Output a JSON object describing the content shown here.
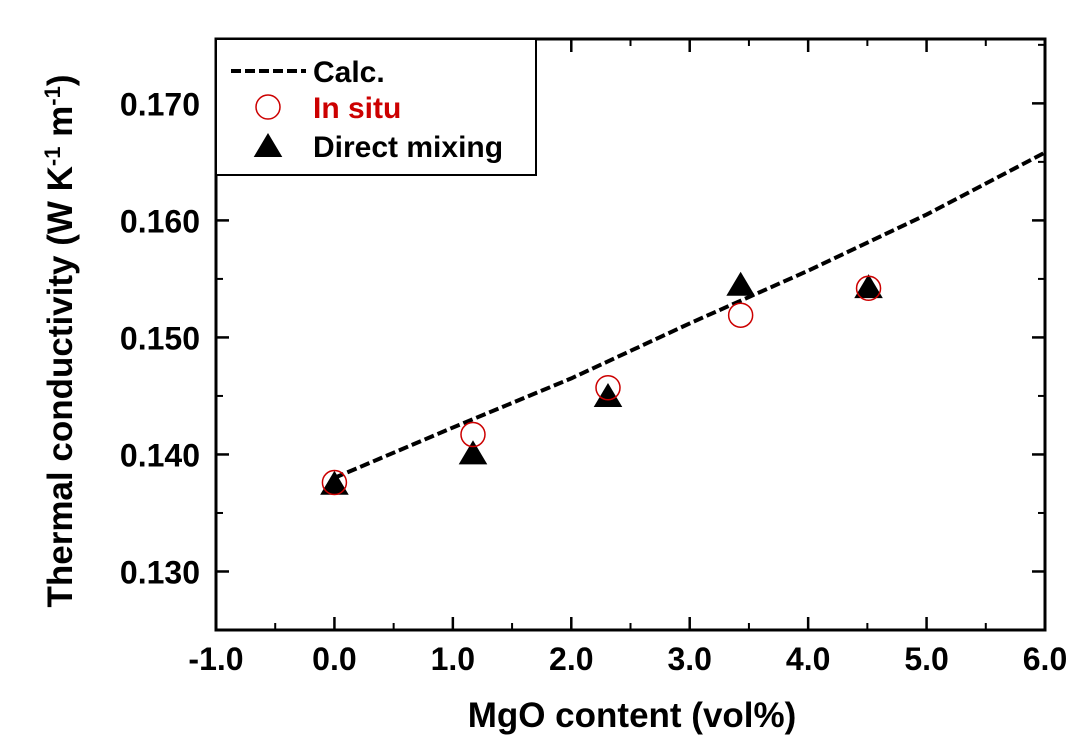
{
  "chart_data": {
    "type": "scatter",
    "xlabel": "MgO content (vol%)",
    "ylabel": "Thermal conductivity (W K",
    "ylabel_sup1": "-1",
    "ylabel_mid": " m",
    "ylabel_sup2": "-1",
    "ylabel_end": ")",
    "xlim": [
      -1.0,
      6.0
    ],
    "ylim": [
      0.125,
      0.1755
    ],
    "x_ticks": [
      -1.0,
      0.0,
      1.0,
      2.0,
      3.0,
      4.0,
      5.0,
      6.0
    ],
    "x_tick_labels": [
      "-1.0",
      "0.0",
      "1.0",
      "2.0",
      "3.0",
      "4.0",
      "5.0",
      "6.0"
    ],
    "y_ticks": [
      0.13,
      0.14,
      0.15,
      0.16,
      0.17
    ],
    "y_tick_labels": [
      "0.130",
      "0.140",
      "0.150",
      "0.160",
      "0.170"
    ],
    "grid": false,
    "legend_position": "top-left",
    "series": [
      {
        "name": "Calc.",
        "style": "dashed-line",
        "color": "#000000",
        "x": [
          0.0,
          1.0,
          2.0,
          3.0,
          4.0,
          5.0,
          6.0
        ],
        "y": [
          0.138,
          0.1423,
          0.1465,
          0.1512,
          0.1557,
          0.1605,
          0.1658
        ]
      },
      {
        "name": "In situ",
        "style": "open-circle",
        "color": "#cc0000",
        "x": [
          0.0,
          1.17,
          2.31,
          3.43,
          4.51
        ],
        "y": [
          0.1376,
          0.1417,
          0.1457,
          0.1519,
          0.1542
        ]
      },
      {
        "name": "Direct mixing",
        "style": "filled-triangle",
        "color": "#000000",
        "x": [
          0.0,
          1.17,
          2.31,
          3.43,
          4.51
        ],
        "y": [
          0.1375,
          0.1401,
          0.145,
          0.1545,
          0.1543
        ]
      }
    ]
  }
}
